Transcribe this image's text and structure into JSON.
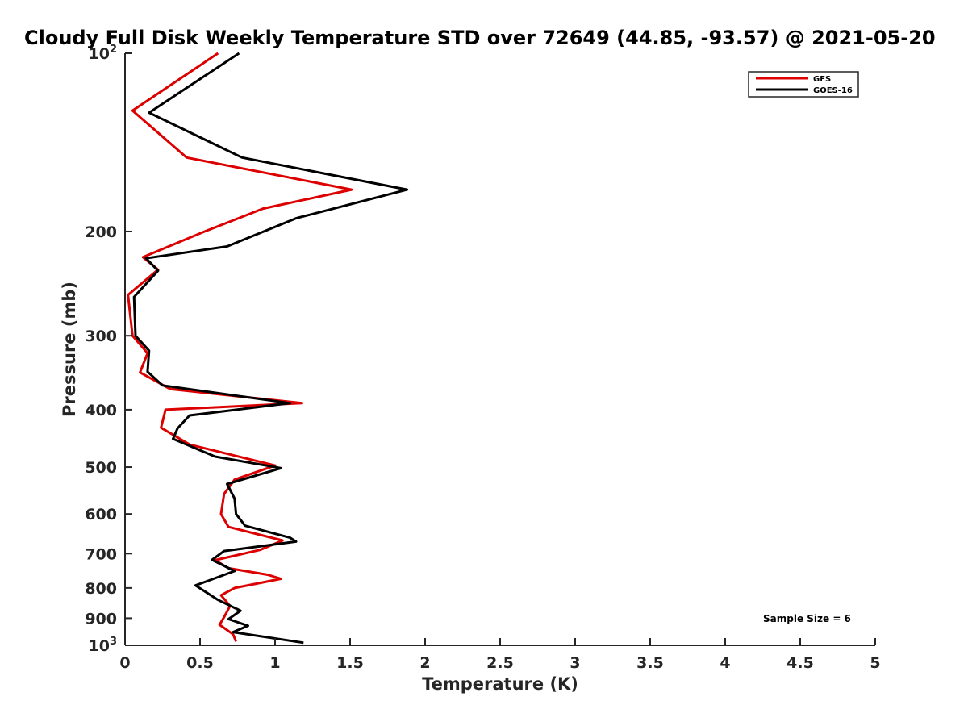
{
  "chart_data": {
    "type": "line",
    "title": "Cloudy Full Disk Weekly Temperature STD over 72649 (44.85, -93.57) @ 2021-05-20",
    "xlabel": "Temperature (K)",
    "ylabel": "Pressure (mb)",
    "xlim": [
      0,
      5
    ],
    "ylim": [
      100,
      1000
    ],
    "y_scale": "log",
    "y_reversed": true,
    "grid": false,
    "legend_position": "top-right",
    "x_ticks": [
      "0",
      "0.5",
      "1",
      "1.5",
      "2",
      "2.5",
      "3",
      "3.5",
      "4",
      "4.5",
      "5"
    ],
    "y_ticks": [
      {
        "value": 100,
        "base": "10",
        "exp": "2"
      },
      {
        "value": 200,
        "label": "200"
      },
      {
        "value": 300,
        "label": "300"
      },
      {
        "value": 400,
        "label": "400"
      },
      {
        "value": 500,
        "label": "500"
      },
      {
        "value": 600,
        "label": "600"
      },
      {
        "value": 700,
        "label": "700"
      },
      {
        "value": 800,
        "label": "800"
      },
      {
        "value": 900,
        "label": "900"
      },
      {
        "value": 1000,
        "base": "10",
        "exp": "3"
      }
    ],
    "annotation": "Sample Size = 6",
    "series": [
      {
        "name": "GFS",
        "color": "#dd0000",
        "points": [
          [
            0.62,
            100
          ],
          [
            0.05,
            125
          ],
          [
            0.41,
            150
          ],
          [
            1.51,
            170
          ],
          [
            0.92,
            183
          ],
          [
            0.53,
            200
          ],
          [
            0.12,
            221
          ],
          [
            0.22,
            232
          ],
          [
            0.02,
            256
          ],
          [
            0.05,
            300
          ],
          [
            0.15,
            321
          ],
          [
            0.1,
            346
          ],
          [
            0.3,
            369
          ],
          [
            1.18,
            390
          ],
          [
            0.27,
            400
          ],
          [
            0.24,
            429
          ],
          [
            0.43,
            458
          ],
          [
            1.0,
            497
          ],
          [
            0.73,
            525
          ],
          [
            0.66,
            555
          ],
          [
            0.64,
            600
          ],
          [
            0.69,
            631
          ],
          [
            1.05,
            665
          ],
          [
            0.9,
            690
          ],
          [
            0.6,
            718
          ],
          [
            0.69,
            741
          ],
          [
            0.95,
            760
          ],
          [
            1.04,
            772
          ],
          [
            0.73,
            800
          ],
          [
            0.64,
            823
          ],
          [
            0.7,
            858
          ],
          [
            0.66,
            896
          ],
          [
            0.63,
            923
          ],
          [
            0.72,
            958
          ],
          [
            0.74,
            985
          ]
        ]
      },
      {
        "name": "GOES-16",
        "color": "#000000",
        "points": [
          [
            0.76,
            100
          ],
          [
            0.16,
            126
          ],
          [
            0.78,
            150
          ],
          [
            1.88,
            170
          ],
          [
            1.14,
            190
          ],
          [
            0.68,
            212
          ],
          [
            0.14,
            222
          ],
          [
            0.22,
            233
          ],
          [
            0.06,
            258
          ],
          [
            0.07,
            300
          ],
          [
            0.16,
            318
          ],
          [
            0.15,
            345
          ],
          [
            0.25,
            364
          ],
          [
            1.1,
            390
          ],
          [
            0.43,
            409
          ],
          [
            0.35,
            430
          ],
          [
            0.32,
            448
          ],
          [
            0.6,
            480
          ],
          [
            1.04,
            502
          ],
          [
            0.68,
            534
          ],
          [
            0.73,
            565
          ],
          [
            0.74,
            600
          ],
          [
            0.8,
            628
          ],
          [
            1.1,
            658
          ],
          [
            1.14,
            668
          ],
          [
            0.66,
            693
          ],
          [
            0.58,
            717
          ],
          [
            0.73,
            749
          ],
          [
            0.47,
            792
          ],
          [
            0.62,
            838
          ],
          [
            0.77,
            874
          ],
          [
            0.69,
            903
          ],
          [
            0.82,
            927
          ],
          [
            0.72,
            950
          ],
          [
            1.19,
            990
          ]
        ]
      }
    ]
  }
}
